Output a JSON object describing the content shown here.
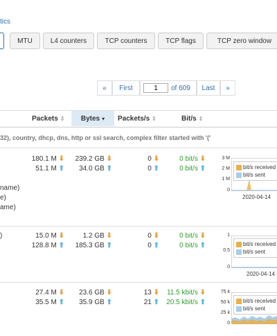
{
  "header": {
    "link_fragment": "tics"
  },
  "tabs": [
    {
      "label": "",
      "active": true
    },
    {
      "label": "MTU",
      "active": false
    },
    {
      "label": "L4 counters",
      "active": false
    },
    {
      "label": "TCP counters",
      "active": false
    },
    {
      "label": "TCP flags",
      "active": false
    },
    {
      "label": "TCP zero window",
      "active": false
    }
  ],
  "pagination": {
    "prev": "«",
    "first": "First",
    "page_value": "1",
    "of_label": "of 609",
    "last": "Last",
    "next": "»"
  },
  "table": {
    "headers": {
      "packets": "Packets",
      "bytes": "Bytes",
      "packets_s": "Packets/s",
      "bits_s": "Bit/s",
      "sort_icon": "⇕",
      "sort_active": "▾"
    },
    "filter_placeholder": "32), country, dhcp, dns, http or ssl search, complex filter started with '('",
    "rows": [
      {
        "packets_rx": "180.1 M",
        "packets_tx": "51.1 M",
        "bytes_rx": "239.2 GB",
        "bytes_tx": "34.0 GB",
        "pps_rx": "0",
        "pps_tx": "0",
        "bps_rx": "0 bit/s",
        "bps_tx": "0 bit/s",
        "left_text": [
          "name)",
          "e)",
          "ame)"
        ],
        "chart": {
          "y_ticks": [
            "3 M",
            "2 M",
            "1 M",
            "0"
          ],
          "x_label": "2020-04-14",
          "legend": [
            "bit/s received",
            "bit/s sent"
          ]
        }
      },
      {
        "packets_rx": "15.0 M",
        "packets_tx": "128.8 M",
        "bytes_rx": "1.2 GB",
        "bytes_tx": "185.3 GB",
        "pps_rx": "0",
        "pps_tx": "0",
        "bps_rx": "0 bit/s",
        "bps_tx": "0 bit/s",
        "left_text": [
          ")"
        ],
        "chart": {
          "y_ticks": [
            "1",
            "0.5",
            "0"
          ],
          "x_label": "2020-04-14",
          "legend": [
            "bit/s received",
            "bit/s sent"
          ]
        }
      },
      {
        "packets_rx": "27.4 M",
        "packets_tx": "35.5 M",
        "bytes_rx": "23.6 GB",
        "bytes_tx": "35.9 GB",
        "pps_rx": "13",
        "pps_tx": "21",
        "bps_rx": "11.5 kbit/s",
        "bps_tx": "20.5 kbit/s",
        "left_text": [],
        "chart": {
          "y_ticks": [
            "75 k",
            "50 k",
            "25 k",
            "0"
          ],
          "x_label": "",
          "legend": [
            "bit/s received",
            "bit/s sent"
          ]
        }
      }
    ]
  },
  "colors": {
    "received": "#e8b04a",
    "sent": "#a9cde8",
    "link": "#2a6fb0",
    "green": "#2d9b2d"
  }
}
